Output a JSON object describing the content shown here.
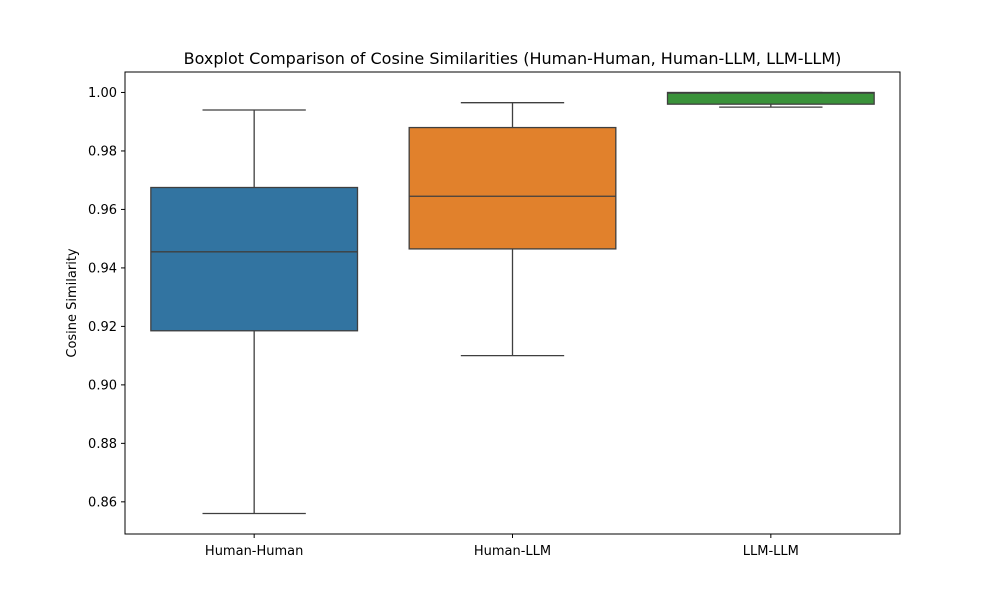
{
  "chart_data": {
    "type": "box",
    "title": "Boxplot Comparison of Cosine Similarities (Human-Human, Human-LLM, LLM-LLM)",
    "xlabel": "",
    "ylabel": "Cosine Similarity",
    "ylim": [
      0.849,
      1.007
    ],
    "yticks": [
      "0.86",
      "0.88",
      "0.90",
      "0.92",
      "0.94",
      "0.96",
      "0.98",
      "1.00"
    ],
    "grid": false,
    "categories": [
      "Human-Human",
      "Human-LLM",
      "LLM-LLM"
    ],
    "boxes": [
      {
        "category": "Human-Human",
        "whisker_low": 0.856,
        "q1": 0.9185,
        "median": 0.9455,
        "q3": 0.9675,
        "whisker_high": 0.994,
        "color": "#3274a1"
      },
      {
        "category": "Human-LLM",
        "whisker_low": 0.91,
        "q1": 0.9465,
        "median": 0.9645,
        "q3": 0.988,
        "whisker_high": 0.9965,
        "color": "#e1812c"
      },
      {
        "category": "LLM-LLM",
        "whisker_low": 0.995,
        "q1": 0.996,
        "median": 0.9998,
        "q3": 1.0,
        "whisker_high": 1.0,
        "color": "#3a923a"
      }
    ]
  }
}
